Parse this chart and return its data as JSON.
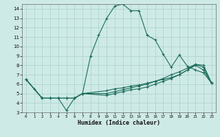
{
  "xlabel": "Humidex (Indice chaleur)",
  "bg_color": "#ceeae6",
  "grid_color": "#aacfcc",
  "line_color": "#1a6b5a",
  "xlim": [
    -0.5,
    23.5
  ],
  "ylim": [
    3,
    14.5
  ],
  "yticks": [
    3,
    4,
    5,
    6,
    7,
    8,
    9,
    10,
    11,
    12,
    13,
    14
  ],
  "xticks": [
    0,
    1,
    2,
    3,
    4,
    5,
    6,
    7,
    8,
    9,
    10,
    11,
    12,
    13,
    14,
    15,
    16,
    17,
    18,
    19,
    20,
    21,
    22,
    23
  ],
  "curve1_x": [
    0,
    1,
    2,
    3,
    4,
    5,
    6,
    7,
    8,
    9,
    10,
    11,
    12,
    13,
    14,
    15,
    16,
    17,
    18,
    19,
    20,
    21,
    22,
    23
  ],
  "curve1_y": [
    6.5,
    5.5,
    4.5,
    4.5,
    4.5,
    3.2,
    4.5,
    5.0,
    9.0,
    11.2,
    13.0,
    14.3,
    14.5,
    13.8,
    13.8,
    11.2,
    10.7,
    9.2,
    7.8,
    9.1,
    7.9,
    7.5,
    7.2,
    6.1
  ],
  "curve2_x": [
    0,
    2,
    3,
    4,
    5,
    6,
    7,
    10,
    11,
    12,
    13,
    14,
    15,
    16,
    17,
    18,
    19,
    20,
    21,
    22,
    23
  ],
  "curve2_y": [
    6.5,
    4.5,
    4.5,
    4.5,
    4.5,
    4.5,
    5.0,
    5.3,
    5.5,
    5.6,
    5.8,
    5.9,
    6.1,
    6.3,
    6.5,
    6.7,
    7.0,
    7.5,
    8.1,
    8.0,
    6.1
  ],
  "curve3_x": [
    0,
    2,
    3,
    4,
    5,
    6,
    7,
    10,
    11,
    12,
    13,
    14,
    15,
    16,
    17,
    18,
    19,
    20,
    21,
    22,
    23
  ],
  "curve3_y": [
    6.5,
    4.5,
    4.5,
    4.5,
    4.5,
    4.5,
    5.0,
    5.0,
    5.2,
    5.4,
    5.6,
    5.8,
    6.0,
    6.3,
    6.6,
    7.0,
    7.3,
    7.7,
    8.1,
    7.8,
    6.1
  ],
  "curve4_x": [
    0,
    2,
    3,
    4,
    5,
    6,
    7,
    10,
    11,
    12,
    13,
    14,
    15,
    16,
    17,
    18,
    19,
    20,
    21,
    22,
    23
  ],
  "curve4_y": [
    6.5,
    4.5,
    4.5,
    4.5,
    4.5,
    4.5,
    5.0,
    4.8,
    5.0,
    5.2,
    5.4,
    5.5,
    5.7,
    6.0,
    6.3,
    6.6,
    7.0,
    7.5,
    8.0,
    7.5,
    6.1
  ]
}
